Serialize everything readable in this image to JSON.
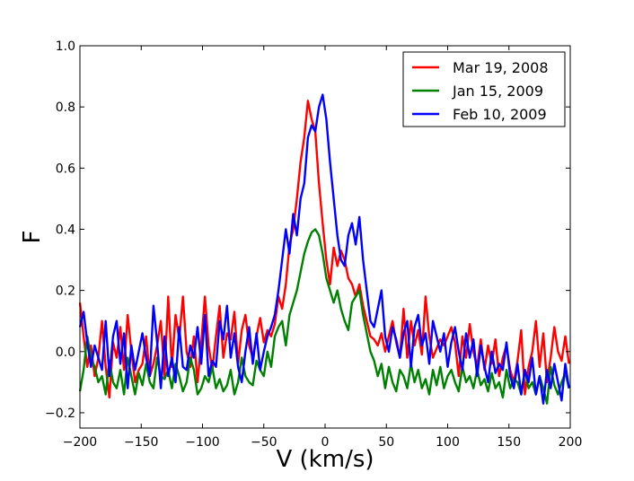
{
  "chart_data": {
    "type": "line",
    "title": "",
    "xlabel": "V (km/s)",
    "ylabel": "F",
    "xlim": [
      -200,
      200
    ],
    "ylim": [
      -0.25,
      1.0
    ],
    "xticks": [
      -200,
      -150,
      -100,
      -50,
      0,
      50,
      100,
      150,
      200
    ],
    "xtick_labels": [
      "−200",
      "−150",
      "−100",
      "−50",
      "0",
      "50",
      "100",
      "150",
      "200"
    ],
    "yticks": [
      -0.2,
      0.0,
      0.2,
      0.4,
      0.6,
      0.8,
      1.0
    ],
    "ytick_labels": [
      "−0.2",
      "0.0",
      "0.2",
      "0.4",
      "0.6",
      "0.8",
      "1.0"
    ],
    "legend_position": "top-right",
    "grid": false,
    "x": [
      -200,
      -197,
      -194,
      -191,
      -188,
      -185,
      -182,
      -179,
      -176,
      -173,
      -170,
      -167,
      -164,
      -161,
      -158,
      -155,
      -152,
      -149,
      -146,
      -143,
      -140,
      -137,
      -134,
      -131,
      -128,
      -125,
      -122,
      -119,
      -116,
      -113,
      -110,
      -107,
      -104,
      -101,
      -98,
      -95,
      -92,
      -89,
      -86,
      -83,
      -80,
      -77,
      -74,
      -71,
      -68,
      -65,
      -62,
      -59,
      -56,
      -53,
      -50,
      -47,
      -44,
      -41,
      -38,
      -35,
      -32,
      -29,
      -26,
      -23,
      -20,
      -17,
      -14,
      -11,
      -8,
      -5,
      -2,
      1,
      4,
      7,
      10,
      13,
      16,
      19,
      22,
      25,
      28,
      31,
      34,
      37,
      40,
      43,
      46,
      49,
      52,
      55,
      58,
      61,
      64,
      67,
      70,
      73,
      76,
      79,
      82,
      85,
      88,
      91,
      94,
      97,
      100,
      103,
      106,
      109,
      112,
      115,
      118,
      121,
      124,
      127,
      130,
      133,
      136,
      139,
      142,
      145,
      148,
      151,
      154,
      157,
      160,
      163,
      166,
      169,
      172,
      175,
      178,
      181,
      184,
      187,
      190,
      193,
      196,
      199
    ],
    "series": [
      {
        "name": "Mar 19, 2008",
        "color": "#ff0000",
        "values": [
          0.16,
          0.05,
          -0.05,
          0.02,
          -0.08,
          -0.02,
          0.1,
          -0.05,
          -0.15,
          0.03,
          -0.02,
          0.08,
          -0.06,
          0.12,
          0.0,
          -0.1,
          -0.06,
          -0.04,
          0.05,
          -0.08,
          -0.04,
          0.02,
          0.1,
          -0.08,
          0.18,
          -0.05,
          0.12,
          0.04,
          0.18,
          0.0,
          -0.05,
          0.05,
          -0.1,
          0.03,
          0.18,
          0.02,
          -0.06,
          0.05,
          0.15,
          -0.02,
          0.06,
          0.04,
          0.13,
          -0.04,
          0.07,
          0.12,
          0.02,
          -0.02,
          0.05,
          0.11,
          0.03,
          0.07,
          0.05,
          0.09,
          0.18,
          0.14,
          0.22,
          0.35,
          0.4,
          0.5,
          0.62,
          0.7,
          0.82,
          0.76,
          0.72,
          0.55,
          0.42,
          0.3,
          0.22,
          0.34,
          0.28,
          0.33,
          0.3,
          0.24,
          0.22,
          0.18,
          0.22,
          0.15,
          0.1,
          0.05,
          0.04,
          0.02,
          0.06,
          0.0,
          0.05,
          0.1,
          0.03,
          -0.02,
          0.14,
          -0.02,
          0.1,
          0.02,
          0.07,
          -0.01,
          0.18,
          0.05,
          -0.02,
          0.01,
          0.04,
          0.02,
          0.05,
          0.08,
          0.03,
          -0.08,
          0.05,
          -0.02,
          0.09,
          0.0,
          -0.05,
          0.04,
          -0.06,
          0.02,
          -0.04,
          0.04,
          -0.08,
          -0.02,
          0.02,
          -0.06,
          -0.1,
          -0.03,
          0.07,
          -0.14,
          -0.05,
          0.0,
          0.1,
          -0.05,
          0.06,
          -0.1,
          -0.02,
          0.08,
          0.0,
          -0.03,
          0.05,
          -0.04
        ]
      },
      {
        "name": "Jan  15, 2009",
        "color": "#008000",
        "values": [
          -0.13,
          -0.06,
          0.05,
          -0.02,
          -0.05,
          -0.1,
          -0.08,
          -0.14,
          -0.03,
          -0.1,
          -0.12,
          -0.06,
          -0.14,
          -0.02,
          -0.08,
          -0.14,
          -0.07,
          -0.11,
          -0.04,
          -0.1,
          -0.12,
          -0.02,
          -0.08,
          -0.09,
          -0.06,
          -0.12,
          -0.04,
          -0.08,
          -0.13,
          -0.1,
          -0.02,
          -0.06,
          -0.14,
          -0.12,
          -0.08,
          -0.1,
          -0.05,
          -0.12,
          -0.09,
          -0.13,
          -0.11,
          -0.06,
          -0.14,
          -0.1,
          -0.02,
          -0.08,
          -0.1,
          -0.11,
          -0.03,
          -0.06,
          -0.08,
          0.0,
          -0.05,
          0.05,
          0.08,
          0.1,
          0.02,
          0.12,
          0.16,
          0.2,
          0.26,
          0.32,
          0.36,
          0.39,
          0.4,
          0.38,
          0.32,
          0.24,
          0.2,
          0.16,
          0.2,
          0.14,
          0.1,
          0.07,
          0.16,
          0.18,
          0.2,
          0.12,
          0.06,
          0.0,
          -0.03,
          -0.08,
          -0.04,
          -0.12,
          -0.05,
          -0.1,
          -0.13,
          -0.06,
          -0.08,
          -0.12,
          -0.04,
          -0.1,
          -0.06,
          -0.12,
          -0.09,
          -0.14,
          -0.06,
          -0.11,
          -0.05,
          -0.12,
          -0.08,
          -0.06,
          -0.1,
          -0.13,
          -0.05,
          -0.1,
          -0.08,
          -0.12,
          -0.06,
          -0.11,
          -0.09,
          -0.13,
          -0.07,
          -0.12,
          -0.1,
          -0.15,
          -0.06,
          -0.12,
          -0.09,
          -0.1,
          -0.14,
          -0.06,
          -0.12,
          -0.1,
          -0.14,
          -0.08,
          -0.12,
          -0.17,
          -0.05,
          -0.11,
          -0.14,
          -0.1,
          -0.07,
          -0.12
        ]
      },
      {
        "name": "Feb 10, 2009",
        "color": "#0000ff",
        "values": [
          0.08,
          0.13,
          0.03,
          -0.05,
          0.02,
          -0.02,
          -0.06,
          0.1,
          -0.08,
          0.05,
          0.1,
          -0.04,
          0.06,
          -0.12,
          0.02,
          -0.06,
          0.0,
          0.06,
          -0.02,
          -0.08,
          0.15,
          0.03,
          -0.12,
          0.05,
          -0.08,
          -0.02,
          -0.1,
          0.08,
          -0.05,
          -0.06,
          0.02,
          -0.02,
          0.08,
          -0.04,
          0.12,
          -0.08,
          -0.03,
          -0.05,
          0.1,
          0.04,
          0.15,
          -0.02,
          0.06,
          -0.05,
          -0.1,
          0.0,
          0.08,
          -0.04,
          0.06,
          -0.06,
          0.0,
          0.05,
          0.08,
          0.12,
          0.2,
          0.3,
          0.4,
          0.32,
          0.45,
          0.38,
          0.5,
          0.55,
          0.7,
          0.74,
          0.72,
          0.8,
          0.84,
          0.76,
          0.62,
          0.5,
          0.38,
          0.3,
          0.28,
          0.38,
          0.42,
          0.35,
          0.44,
          0.3,
          0.2,
          0.1,
          0.08,
          0.14,
          0.2,
          0.05,
          0.0,
          0.08,
          0.04,
          -0.02,
          0.06,
          0.1,
          -0.05,
          0.08,
          0.12,
          0.02,
          0.06,
          -0.04,
          0.1,
          0.05,
          0.0,
          0.06,
          -0.05,
          0.03,
          0.08,
          0.0,
          -0.06,
          0.06,
          -0.02,
          0.04,
          -0.08,
          0.02,
          -0.05,
          -0.1,
          0.0,
          -0.07,
          -0.04,
          -0.06,
          0.03,
          -0.08,
          -0.12,
          -0.04,
          -0.14,
          -0.06,
          -0.1,
          -0.02,
          -0.14,
          -0.08,
          -0.17,
          -0.06,
          -0.12,
          -0.04,
          -0.1,
          -0.16,
          -0.04,
          -0.12
        ]
      }
    ]
  }
}
